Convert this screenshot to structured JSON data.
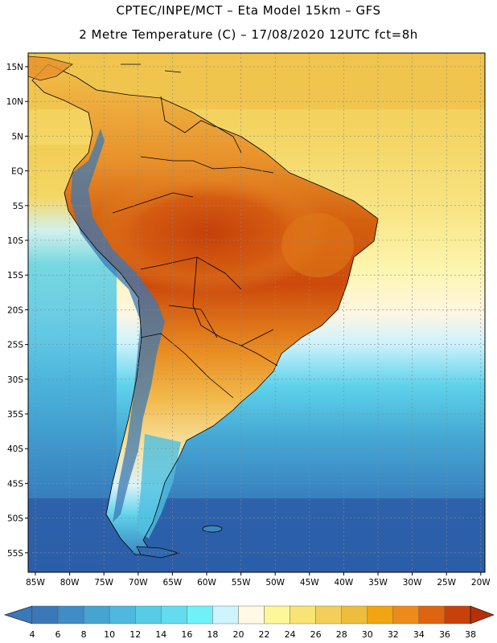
{
  "header": {
    "title_line1": "CPTEC/INPE/MCT –  Eta Model 15km – GFS",
    "title_line2": "2 Metre Temperature (C) – 17/08/2020 12UTC fct=8h"
  },
  "axes": {
    "lat_labels": [
      "15N",
      "10N",
      "5N",
      "EQ",
      "5S",
      "10S",
      "15S",
      "20S",
      "25S",
      "30S",
      "35S",
      "40S",
      "45S",
      "50S",
      "55S"
    ],
    "lon_labels": [
      "85W",
      "80W",
      "75W",
      "70W",
      "65W",
      "60W",
      "55W",
      "50W",
      "45W",
      "40W",
      "35W",
      "30W",
      "25W",
      "20W"
    ]
  },
  "colorbar": {
    "labels": [
      "4",
      "6",
      "8",
      "10",
      "12",
      "14",
      "16",
      "18",
      "20",
      "22",
      "24",
      "26",
      "28",
      "30",
      "32",
      "34",
      "36",
      "38"
    ],
    "colors": [
      "#3a78b8",
      "#3f8cc6",
      "#46a3d2",
      "#4fb8de",
      "#58cbe6",
      "#62dcee",
      "#70f0f8",
      "#cdf4ff",
      "#fff9e6",
      "#fdf79a",
      "#f8e374",
      "#f3cf5a",
      "#eebd3c",
      "#f2a512",
      "#ec8a1c",
      "#de6410",
      "#c8400a",
      "#b4300a"
    ]
  },
  "colors": {
    "ocean_south": "#2c5ea8",
    "ocean_mid": "#3a8ec6",
    "ocean_cool": "#4cc0e0",
    "ocean_warm": "#f2d25c",
    "land_hot": "#cc4a0c",
    "land_warm": "#e8902a",
    "land_mild": "#f4c24a",
    "andes_cold": "#3c78b4"
  }
}
